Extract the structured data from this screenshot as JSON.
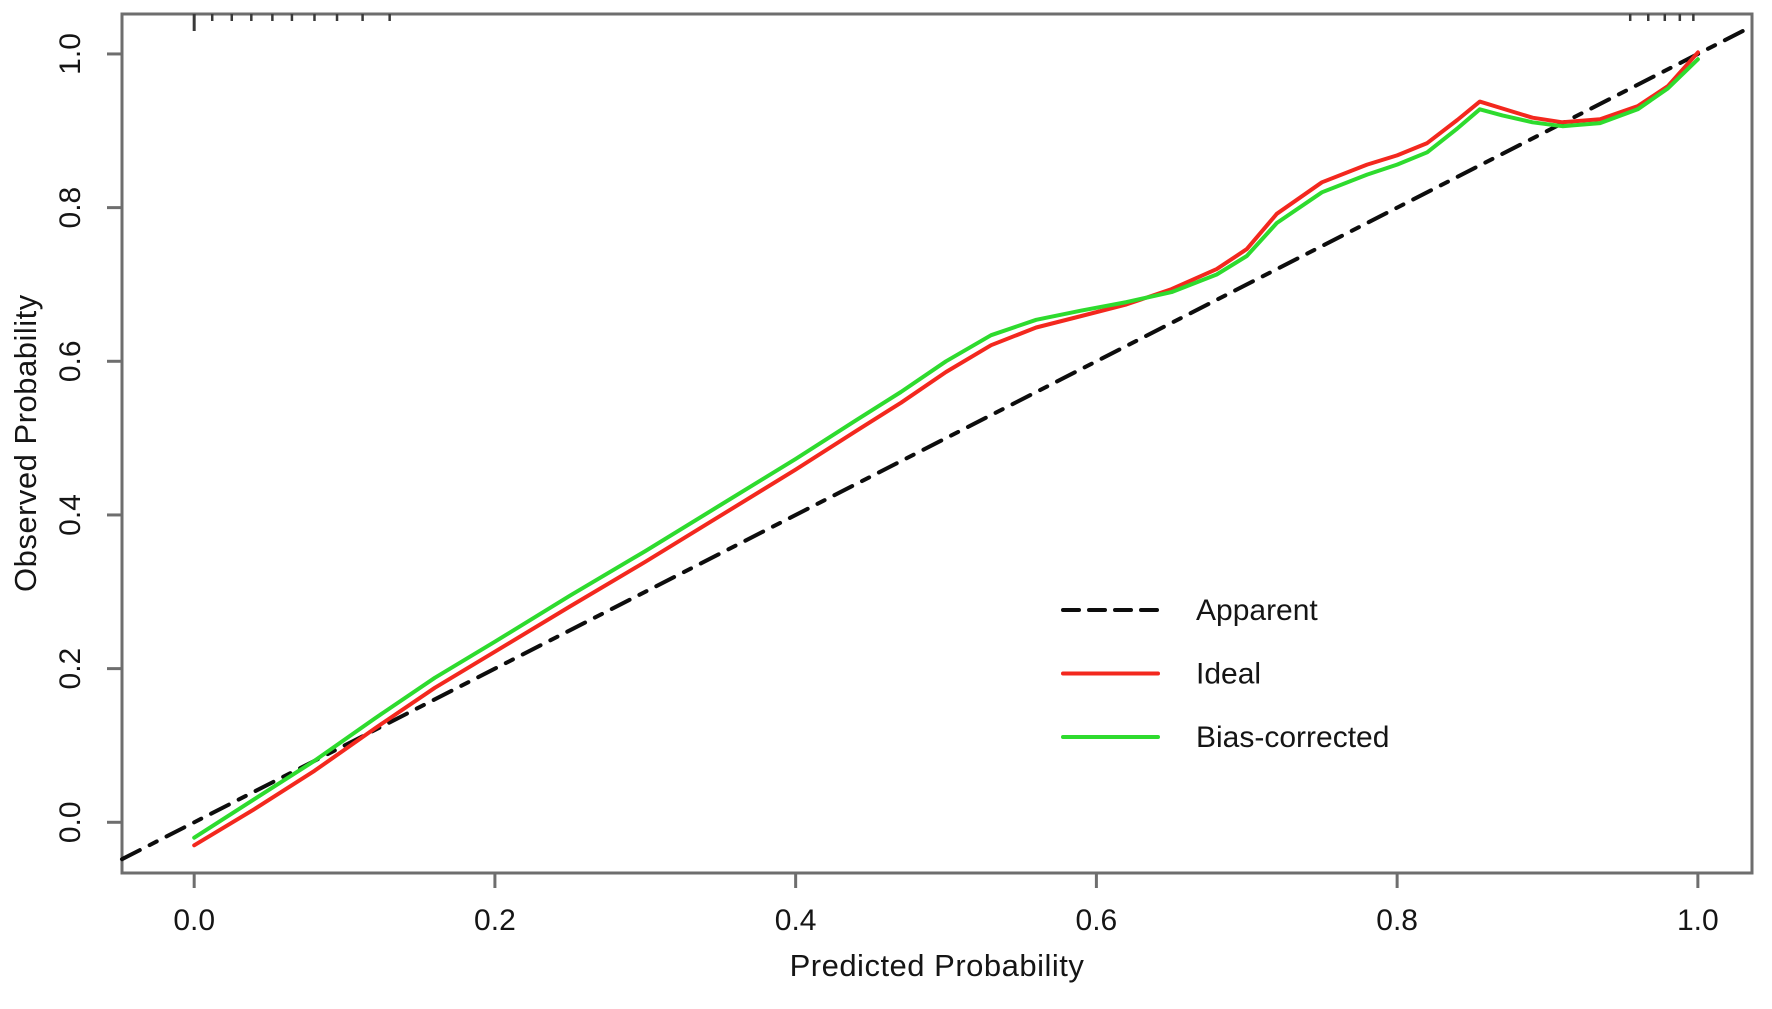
{
  "figure": {
    "background": "#ffffff",
    "text_color": "#151515",
    "axis_color": "#6e6e6e"
  },
  "chart_data": {
    "type": "line",
    "title": "",
    "xlabel": "Predicted Probability",
    "ylabel": "Observed Probability",
    "xlim": [
      -0.048,
      1.036
    ],
    "ylim": [
      -0.066,
      1.052
    ],
    "grid": false,
    "xticks": [
      0.0,
      0.2,
      0.4,
      0.6,
      0.8,
      1.0
    ],
    "yticks": [
      0.0,
      0.2,
      0.4,
      0.6,
      0.8,
      1.0
    ],
    "xtick_labels": [
      "0.0",
      "0.2",
      "0.4",
      "0.6",
      "0.8",
      "1.0"
    ],
    "ytick_labels": [
      "0.0",
      "0.2",
      "0.4",
      "0.6",
      "0.8",
      "1.0"
    ],
    "legend_position": "inside right-center",
    "series": [
      {
        "name": "Apparent",
        "style": "dashed",
        "color": "#0d0d0d",
        "x": [
          -0.048,
          1.036
        ],
        "y": [
          -0.048,
          1.036
        ]
      },
      {
        "name": "Ideal",
        "style": "solid",
        "color": "#f3281e",
        "x": [
          0.0,
          0.04,
          0.08,
          0.12,
          0.16,
          0.2,
          0.25,
          0.3,
          0.35,
          0.4,
          0.44,
          0.47,
          0.5,
          0.53,
          0.56,
          0.59,
          0.62,
          0.65,
          0.68,
          0.7,
          0.72,
          0.75,
          0.78,
          0.8,
          0.82,
          0.84,
          0.855,
          0.87,
          0.89,
          0.91,
          0.935,
          0.96,
          0.98,
          1.0
        ],
        "y": [
          -0.03,
          0.017,
          0.067,
          0.122,
          0.175,
          0.222,
          0.281,
          0.339,
          0.399,
          0.459,
          0.509,
          0.546,
          0.586,
          0.621,
          0.644,
          0.659,
          0.674,
          0.694,
          0.72,
          0.746,
          0.792,
          0.833,
          0.856,
          0.868,
          0.884,
          0.914,
          0.938,
          0.929,
          0.917,
          0.911,
          0.915,
          0.932,
          0.958,
          1.002
        ]
      },
      {
        "name": "Bias-corrected",
        "style": "solid",
        "color": "#2edb2e",
        "x": [
          0.0,
          0.04,
          0.08,
          0.12,
          0.16,
          0.2,
          0.25,
          0.3,
          0.35,
          0.4,
          0.44,
          0.47,
          0.5,
          0.53,
          0.56,
          0.59,
          0.62,
          0.65,
          0.68,
          0.7,
          0.72,
          0.75,
          0.78,
          0.8,
          0.82,
          0.84,
          0.855,
          0.87,
          0.89,
          0.91,
          0.935,
          0.96,
          0.98,
          1.0
        ],
        "y": [
          -0.02,
          0.03,
          0.08,
          0.135,
          0.188,
          0.235,
          0.295,
          0.353,
          0.413,
          0.473,
          0.523,
          0.56,
          0.6,
          0.634,
          0.654,
          0.666,
          0.677,
          0.69,
          0.713,
          0.737,
          0.78,
          0.82,
          0.843,
          0.856,
          0.872,
          0.903,
          0.928,
          0.92,
          0.911,
          0.906,
          0.91,
          0.928,
          0.955,
          0.993
        ]
      }
    ],
    "rug_ticks_top": {
      "major": [
        0.0
      ],
      "minor": [
        0.012,
        0.025,
        0.038,
        0.052,
        0.065,
        0.08,
        0.095,
        0.112,
        0.13,
        0.955,
        0.967,
        0.978,
        0.988,
        0.997
      ]
    }
  }
}
